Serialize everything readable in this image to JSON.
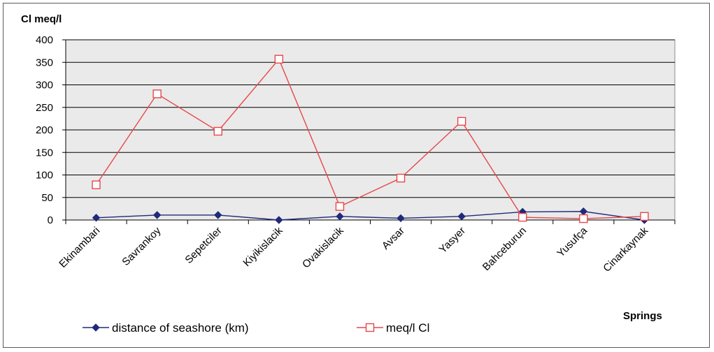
{
  "chart_data": {
    "type": "line",
    "ylabel": "Cl meq/l",
    "xlabel": "Springs",
    "ylim": [
      0,
      400
    ],
    "yticks": [
      0,
      50,
      100,
      150,
      200,
      250,
      300,
      350,
      400
    ],
    "categories": [
      "Ekinambari",
      "Savrankoy",
      "Sepetciler",
      "Kiyikislacik",
      "Ovakislacik",
      "Avsar",
      "Yasyer",
      "Bahceburun",
      "Yusufça",
      "Cinarkaynak"
    ],
    "series": [
      {
        "name": "distance of  seashore (km)",
        "color": "#1f2a7a",
        "marker": "diamond",
        "values": [
          5,
          11,
          11,
          0,
          8,
          4,
          8,
          18,
          19,
          0
        ]
      },
      {
        "name": "meq/l Cl",
        "color": "#e8474a",
        "marker": "square-open",
        "values": [
          78,
          280,
          197,
          357,
          30,
          93,
          219,
          6,
          3,
          8
        ]
      }
    ],
    "grid": true,
    "plot_background": "#eaeaea",
    "legend_position": "bottom"
  }
}
